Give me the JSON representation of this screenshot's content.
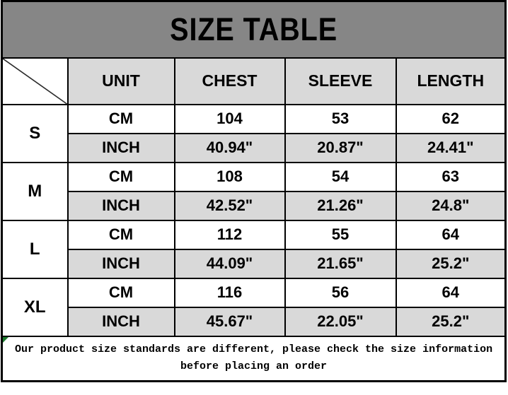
{
  "title": "SIZE TABLE",
  "columns": [
    "UNIT",
    "CHEST",
    "SLEEVE",
    "LENGTH"
  ],
  "sizes": [
    {
      "label": "S",
      "rows": [
        {
          "unit": "CM",
          "values": [
            "104",
            "53",
            "62"
          ]
        },
        {
          "unit": "INCH",
          "values": [
            "40.94\"",
            "20.87\"",
            "24.41\""
          ]
        }
      ]
    },
    {
      "label": "M",
      "rows": [
        {
          "unit": "CM",
          "values": [
            "108",
            "54",
            "63"
          ]
        },
        {
          "unit": "INCH",
          "values": [
            "42.52\"",
            "21.26\"",
            "24.8\""
          ]
        }
      ]
    },
    {
      "label": "L",
      "rows": [
        {
          "unit": "CM",
          "values": [
            "112",
            "55",
            "64"
          ]
        },
        {
          "unit": "INCH",
          "values": [
            "44.09\"",
            "21.65\"",
            "25.2\""
          ]
        }
      ]
    },
    {
      "label": "XL",
      "rows": [
        {
          "unit": "CM",
          "values": [
            "116",
            "56",
            "64"
          ]
        },
        {
          "unit": "INCH",
          "values": [
            "45.67\"",
            "22.05\"",
            "25.2\""
          ]
        }
      ]
    }
  ],
  "footer": {
    "line1": "Our product size standards are different, please check the size information",
    "line2": "before placing an order"
  },
  "chart_data": {
    "type": "table",
    "title": "SIZE TABLE",
    "columns": [
      "",
      "UNIT",
      "CHEST",
      "SLEEVE",
      "LENGTH"
    ],
    "rows": [
      [
        "S",
        "CM",
        104,
        53,
        62
      ],
      [
        "S",
        "INCH",
        40.94,
        20.87,
        24.41
      ],
      [
        "M",
        "CM",
        108,
        54,
        63
      ],
      [
        "M",
        "INCH",
        42.52,
        21.26,
        24.8
      ],
      [
        "L",
        "CM",
        112,
        55,
        64
      ],
      [
        "L",
        "INCH",
        44.09,
        21.65,
        25.2
      ],
      [
        "XL",
        "CM",
        116,
        56,
        64
      ],
      [
        "XL",
        "INCH",
        45.67,
        22.05,
        25.2
      ]
    ],
    "note": "Our product size standards are different, please check the size information before placing an order"
  },
  "colors": {
    "title_bg": "#868686",
    "cell_gray": "#d9d9d9",
    "cell_white": "#ffffff",
    "border": "#000000",
    "text": "#000000",
    "corner_marker_green": "#1c7a2e"
  }
}
